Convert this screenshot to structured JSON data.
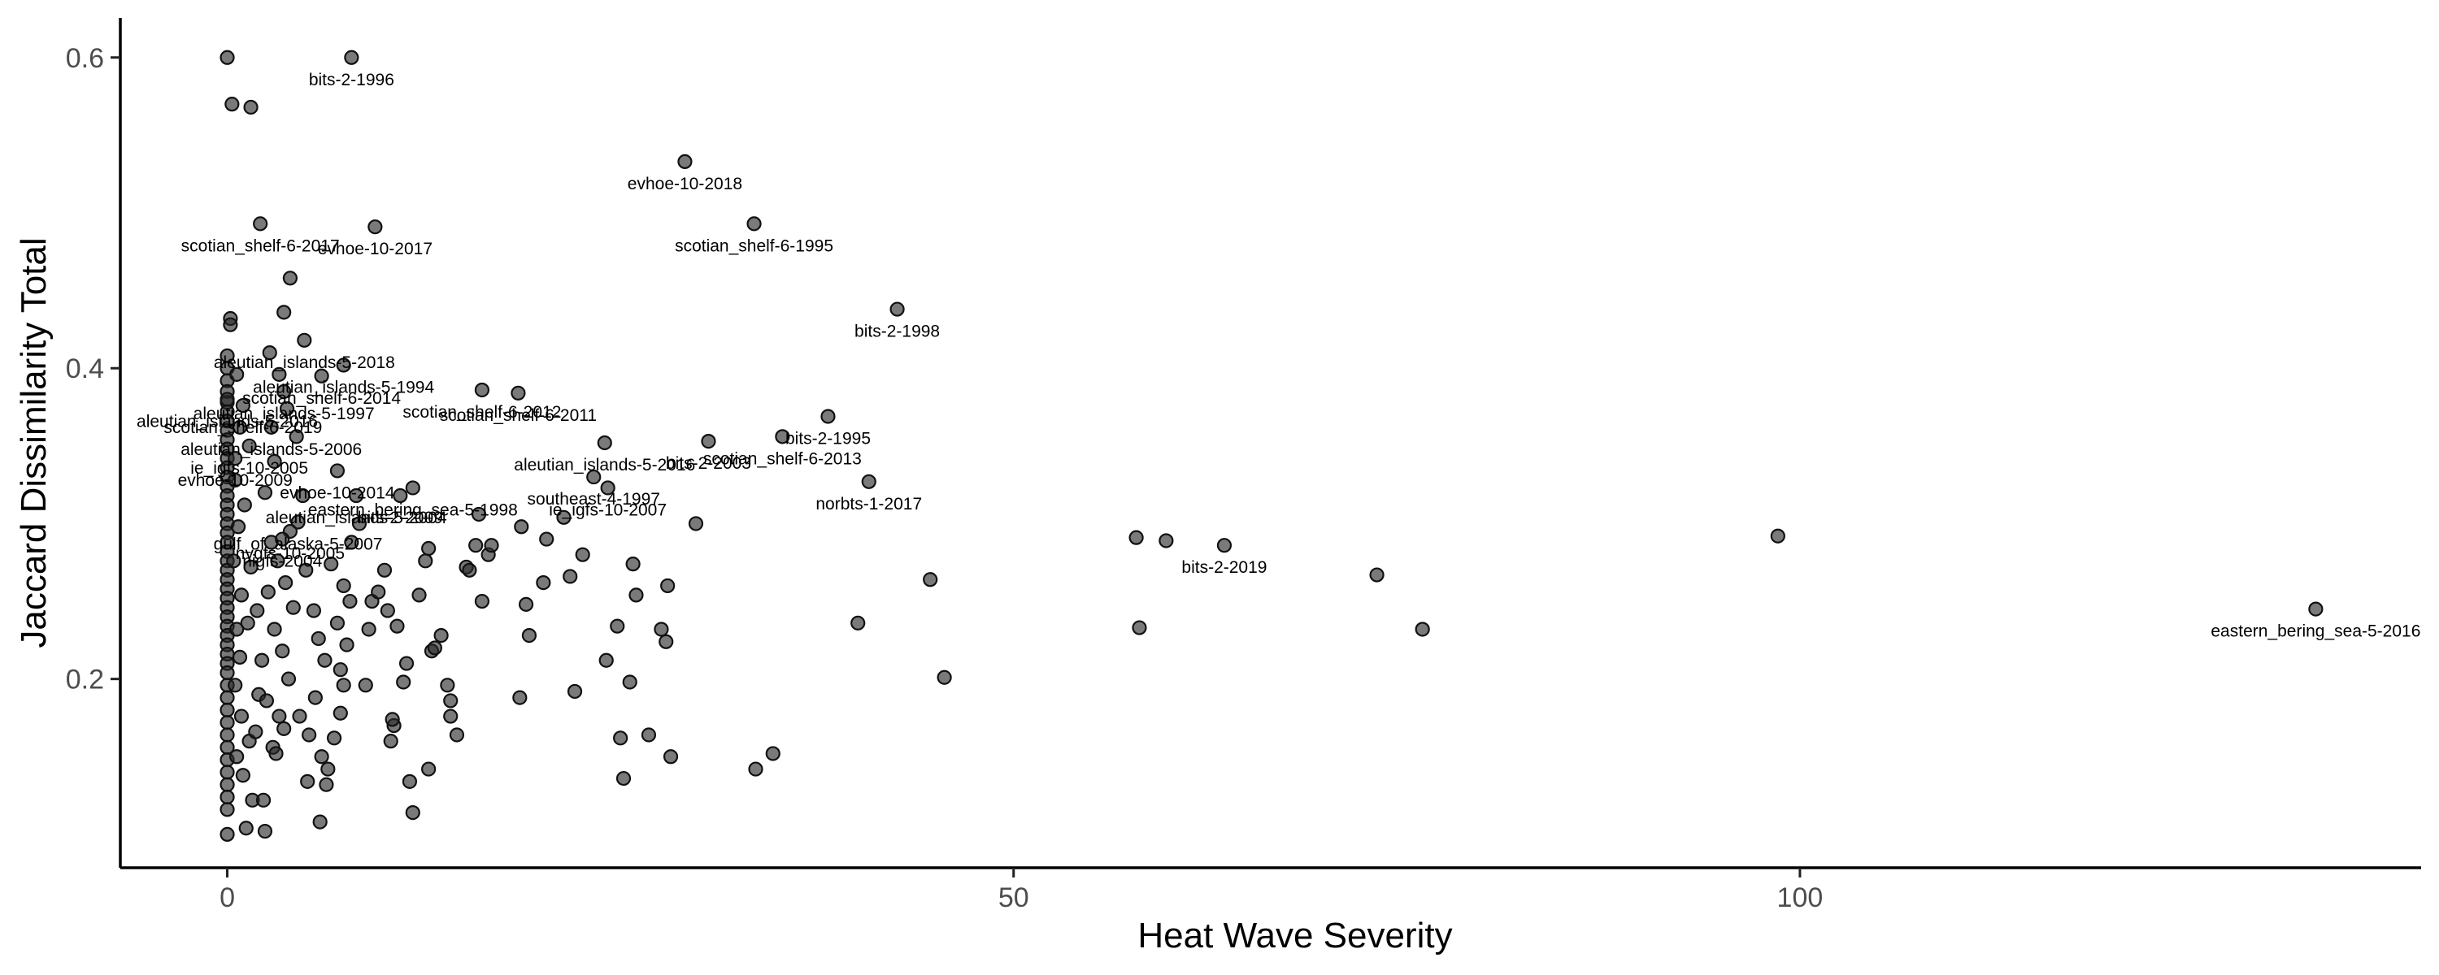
{
  "chart_data": {
    "type": "scatter",
    "title": "",
    "xlabel": "Heat Wave Severity",
    "ylabel": "Jaccard Dissimilarity Total",
    "xlim": [
      -6.8,
      139.5
    ],
    "ylim": [
      0.0785,
      0.6255
    ],
    "x_ticks": [
      0,
      50,
      100
    ],
    "y_ticks": [
      0.2,
      0.4,
      0.6
    ],
    "x_tick_labels": [
      "0",
      "50",
      "100"
    ],
    "y_tick_labels": [
      "0.2",
      "0.4",
      "0.6"
    ],
    "grid": false,
    "point_color": "#3a3a3a",
    "labeled_points": [
      {
        "label": "bits-2-1996",
        "x": 7.9,
        "y": 0.6
      },
      {
        "label": "evhoe-10-2018",
        "x": 29.1,
        "y": 0.533
      },
      {
        "label": "scotian_shelf-6-2017",
        "x": 2.1,
        "y": 0.493
      },
      {
        "label": "evhoe-10-2017",
        "x": 9.4,
        "y": 0.491
      },
      {
        "label": "scotian_shelf-6-1995",
        "x": 33.5,
        "y": 0.493
      },
      {
        "label": "bits-2-1998",
        "x": 42.6,
        "y": 0.438
      },
      {
        "label": "aleutian_islands-5-2018",
        "x": 4.9,
        "y": 0.418
      },
      {
        "label": "aleutian_islands-5-1994",
        "x": 7.4,
        "y": 0.402
      },
      {
        "label": "scotian_shelf-6-2014",
        "x": 6.0,
        "y": 0.395
      },
      {
        "label": "aleutian_islands-5-1997",
        "x": 3.6,
        "y": 0.385
      },
      {
        "label": "aleutian_islands-5-2016",
        "x": 0.0,
        "y": 0.38
      },
      {
        "label": "scotian_shelf-6-2019",
        "x": 1.0,
        "y": 0.376
      },
      {
        "label": "scotian_shelf-6-2012",
        "x": 16.2,
        "y": 0.386
      },
      {
        "label": "scotian_shelf-6-2011",
        "x": 18.5,
        "y": 0.384
      },
      {
        "label": "aleutian_islands-5-2006",
        "x": 2.8,
        "y": 0.362
      },
      {
        "label": "aleutian_islands-5-2016",
        "x": 24.0,
        "y": 0.352
      },
      {
        "label": "scotian_shelf-6-2013",
        "x": 35.3,
        "y": 0.356
      },
      {
        "label": "ie_igfs-10-2005",
        "x": 1.4,
        "y": 0.35
      },
      {
        "label": "evhoe-10-2014",
        "x": 7.0,
        "y": 0.334
      },
      {
        "label": "evhoe-10-2009",
        "x": 0.5,
        "y": 0.342
      },
      {
        "label": "bits-2-1995",
        "x": 38.2,
        "y": 0.369
      },
      {
        "label": "bits-2-2003",
        "x": 30.6,
        "y": 0.353
      },
      {
        "label": "ie_igfs-10-2007",
        "x": 24.2,
        "y": 0.323
      },
      {
        "label": "norbts-1-2017",
        "x": 40.8,
        "y": 0.327
      },
      {
        "label": "aleutian_islands-5-2004",
        "x": 8.2,
        "y": 0.318
      },
      {
        "label": "eastern_bering_sea-5-1998",
        "x": 11.8,
        "y": 0.323
      },
      {
        "label": "bits-2-2009",
        "x": 11.0,
        "y": 0.318
      },
      {
        "label": "southeast-4-1997",
        "x": 23.3,
        "y": 0.33
      },
      {
        "label": "gulf_of_alaska-5-2007",
        "x": 4.5,
        "y": 0.301
      },
      {
        "label": "nygfs-10-2005",
        "x": 4.0,
        "y": 0.295
      },
      {
        "label": "nigfs-2004",
        "x": 3.5,
        "y": 0.29
      },
      {
        "label": "bits-2-2019",
        "x": 63.4,
        "y": 0.286
      },
      {
        "label": "eastern_bering_sea-5-2016",
        "x": 132.8,
        "y": 0.245
      }
    ],
    "points": [
      {
        "x": 0.0,
        "y": 0.6
      },
      {
        "x": 0.2,
        "y": 0.432
      },
      {
        "x": 0.2,
        "y": 0.428
      },
      {
        "x": 0.0,
        "y": 0.408
      },
      {
        "x": 0.0,
        "y": 0.4
      },
      {
        "x": 0.0,
        "y": 0.392
      },
      {
        "x": 0.0,
        "y": 0.385
      },
      {
        "x": 0.0,
        "y": 0.378
      },
      {
        "x": 0.0,
        "y": 0.372
      },
      {
        "x": 0.0,
        "y": 0.366
      },
      {
        "x": 0.0,
        "y": 0.36
      },
      {
        "x": 0.0,
        "y": 0.354
      },
      {
        "x": 0.0,
        "y": 0.348
      },
      {
        "x": 0.0,
        "y": 0.342
      },
      {
        "x": 0.0,
        "y": 0.336
      },
      {
        "x": 0.0,
        "y": 0.33
      },
      {
        "x": 0.0,
        "y": 0.324
      },
      {
        "x": 0.0,
        "y": 0.318
      },
      {
        "x": 0.0,
        "y": 0.312
      },
      {
        "x": 0.0,
        "y": 0.306
      },
      {
        "x": 0.0,
        "y": 0.3
      },
      {
        "x": 0.0,
        "y": 0.294
      },
      {
        "x": 0.0,
        "y": 0.288
      },
      {
        "x": 0.0,
        "y": 0.282
      },
      {
        "x": 0.0,
        "y": 0.276
      },
      {
        "x": 0.0,
        "y": 0.27
      },
      {
        "x": 0.0,
        "y": 0.264
      },
      {
        "x": 0.0,
        "y": 0.258
      },
      {
        "x": 0.0,
        "y": 0.252
      },
      {
        "x": 0.0,
        "y": 0.246
      },
      {
        "x": 0.0,
        "y": 0.24
      },
      {
        "x": 0.0,
        "y": 0.234
      },
      {
        "x": 0.0,
        "y": 0.228
      },
      {
        "x": 0.0,
        "y": 0.222
      },
      {
        "x": 0.0,
        "y": 0.216
      },
      {
        "x": 0.0,
        "y": 0.21
      },
      {
        "x": 0.0,
        "y": 0.204
      },
      {
        "x": 0.0,
        "y": 0.196
      },
      {
        "x": 0.0,
        "y": 0.188
      },
      {
        "x": 0.0,
        "y": 0.18
      },
      {
        "x": 0.0,
        "y": 0.172
      },
      {
        "x": 0.0,
        "y": 0.164
      },
      {
        "x": 0.0,
        "y": 0.156
      },
      {
        "x": 0.0,
        "y": 0.148
      },
      {
        "x": 0.0,
        "y": 0.14
      },
      {
        "x": 0.0,
        "y": 0.132
      },
      {
        "x": 0.0,
        "y": 0.124
      },
      {
        "x": 0.0,
        "y": 0.116
      },
      {
        "x": 0.0,
        "y": 0.1
      },
      {
        "x": 0.3,
        "y": 0.57
      },
      {
        "x": 1.5,
        "y": 0.568
      },
      {
        "x": 0.6,
        "y": 0.396
      },
      {
        "x": 0.8,
        "y": 0.362
      },
      {
        "x": 0.5,
        "y": 0.328
      },
      {
        "x": 0.7,
        "y": 0.298
      },
      {
        "x": 0.4,
        "y": 0.276
      },
      {
        "x": 0.9,
        "y": 0.254
      },
      {
        "x": 0.6,
        "y": 0.232
      },
      {
        "x": 0.8,
        "y": 0.214
      },
      {
        "x": 0.5,
        "y": 0.196
      },
      {
        "x": 0.9,
        "y": 0.176
      },
      {
        "x": 0.6,
        "y": 0.15
      },
      {
        "x": 1.0,
        "y": 0.138
      },
      {
        "x": 1.2,
        "y": 0.104
      },
      {
        "x": 1.6,
        "y": 0.122
      },
      {
        "x": 2.3,
        "y": 0.122
      },
      {
        "x": 2.4,
        "y": 0.102
      },
      {
        "x": 1.4,
        "y": 0.16
      },
      {
        "x": 1.8,
        "y": 0.166
      },
      {
        "x": 2.0,
        "y": 0.19
      },
      {
        "x": 2.5,
        "y": 0.186
      },
      {
        "x": 2.2,
        "y": 0.212
      },
      {
        "x": 1.3,
        "y": 0.236
      },
      {
        "x": 1.9,
        "y": 0.244
      },
      {
        "x": 2.6,
        "y": 0.256
      },
      {
        "x": 1.5,
        "y": 0.272
      },
      {
        "x": 2.8,
        "y": 0.288
      },
      {
        "x": 1.1,
        "y": 0.312
      },
      {
        "x": 2.4,
        "y": 0.32
      },
      {
        "x": 3.0,
        "y": 0.34
      },
      {
        "x": 2.7,
        "y": 0.41
      },
      {
        "x": 3.6,
        "y": 0.436
      },
      {
        "x": 4.0,
        "y": 0.458
      },
      {
        "x": 3.3,
        "y": 0.396
      },
      {
        "x": 3.8,
        "y": 0.374
      },
      {
        "x": 4.4,
        "y": 0.356
      },
      {
        "x": 4.8,
        "y": 0.318
      },
      {
        "x": 3.2,
        "y": 0.276
      },
      {
        "x": 3.7,
        "y": 0.262
      },
      {
        "x": 4.2,
        "y": 0.246
      },
      {
        "x": 3.0,
        "y": 0.232
      },
      {
        "x": 3.5,
        "y": 0.218
      },
      {
        "x": 3.9,
        "y": 0.2
      },
      {
        "x": 3.3,
        "y": 0.176
      },
      {
        "x": 3.6,
        "y": 0.168
      },
      {
        "x": 2.9,
        "y": 0.156
      },
      {
        "x": 3.1,
        "y": 0.152
      },
      {
        "x": 5.0,
        "y": 0.27
      },
      {
        "x": 5.5,
        "y": 0.244
      },
      {
        "x": 5.8,
        "y": 0.226
      },
      {
        "x": 6.2,
        "y": 0.212
      },
      {
        "x": 5.6,
        "y": 0.188
      },
      {
        "x": 4.6,
        "y": 0.176
      },
      {
        "x": 5.2,
        "y": 0.164
      },
      {
        "x": 6.0,
        "y": 0.15
      },
      {
        "x": 5.1,
        "y": 0.134
      },
      {
        "x": 6.4,
        "y": 0.142
      },
      {
        "x": 6.3,
        "y": 0.132
      },
      {
        "x": 5.9,
        "y": 0.108
      },
      {
        "x": 6.8,
        "y": 0.162
      },
      {
        "x": 7.2,
        "y": 0.178
      },
      {
        "x": 7.4,
        "y": 0.196
      },
      {
        "x": 7.2,
        "y": 0.206
      },
      {
        "x": 7.6,
        "y": 0.222
      },
      {
        "x": 7.0,
        "y": 0.236
      },
      {
        "x": 7.8,
        "y": 0.25
      },
      {
        "x": 7.4,
        "y": 0.26
      },
      {
        "x": 6.6,
        "y": 0.274
      },
      {
        "x": 7.9,
        "y": 0.288
      },
      {
        "x": 8.4,
        "y": 0.3
      },
      {
        "x": 8.8,
        "y": 0.196
      },
      {
        "x": 9.0,
        "y": 0.232
      },
      {
        "x": 9.2,
        "y": 0.25
      },
      {
        "x": 9.6,
        "y": 0.256
      },
      {
        "x": 10.0,
        "y": 0.27
      },
      {
        "x": 10.2,
        "y": 0.244
      },
      {
        "x": 10.4,
        "y": 0.16
      },
      {
        "x": 10.6,
        "y": 0.17
      },
      {
        "x": 10.5,
        "y": 0.174
      },
      {
        "x": 10.8,
        "y": 0.234
      },
      {
        "x": 11.2,
        "y": 0.198
      },
      {
        "x": 11.4,
        "y": 0.21
      },
      {
        "x": 11.6,
        "y": 0.134
      },
      {
        "x": 11.8,
        "y": 0.114
      },
      {
        "x": 12.2,
        "y": 0.254
      },
      {
        "x": 12.6,
        "y": 0.276
      },
      {
        "x": 12.8,
        "y": 0.284
      },
      {
        "x": 12.8,
        "y": 0.142
      },
      {
        "x": 13.0,
        "y": 0.218
      },
      {
        "x": 13.2,
        "y": 0.22
      },
      {
        "x": 13.6,
        "y": 0.228
      },
      {
        "x": 14.0,
        "y": 0.196
      },
      {
        "x": 14.2,
        "y": 0.186
      },
      {
        "x": 14.2,
        "y": 0.176
      },
      {
        "x": 14.6,
        "y": 0.164
      },
      {
        "x": 15.2,
        "y": 0.272
      },
      {
        "x": 15.4,
        "y": 0.27
      },
      {
        "x": 15.8,
        "y": 0.286
      },
      {
        "x": 16.0,
        "y": 0.306
      },
      {
        "x": 16.2,
        "y": 0.25
      },
      {
        "x": 16.6,
        "y": 0.28
      },
      {
        "x": 16.8,
        "y": 0.286
      },
      {
        "x": 18.7,
        "y": 0.298
      },
      {
        "x": 18.6,
        "y": 0.188
      },
      {
        "x": 19.0,
        "y": 0.248
      },
      {
        "x": 19.2,
        "y": 0.228
      },
      {
        "x": 20.1,
        "y": 0.262
      },
      {
        "x": 20.3,
        "y": 0.29
      },
      {
        "x": 21.4,
        "y": 0.304
      },
      {
        "x": 21.8,
        "y": 0.266
      },
      {
        "x": 22.1,
        "y": 0.192
      },
      {
        "x": 22.6,
        "y": 0.28
      },
      {
        "x": 24.1,
        "y": 0.212
      },
      {
        "x": 24.8,
        "y": 0.234
      },
      {
        "x": 25.0,
        "y": 0.162
      },
      {
        "x": 25.2,
        "y": 0.136
      },
      {
        "x": 25.6,
        "y": 0.198
      },
      {
        "x": 25.8,
        "y": 0.274
      },
      {
        "x": 26.0,
        "y": 0.254
      },
      {
        "x": 26.8,
        "y": 0.164
      },
      {
        "x": 27.6,
        "y": 0.232
      },
      {
        "x": 27.9,
        "y": 0.224
      },
      {
        "x": 28.0,
        "y": 0.26
      },
      {
        "x": 28.2,
        "y": 0.15
      },
      {
        "x": 29.8,
        "y": 0.3
      },
      {
        "x": 33.6,
        "y": 0.142
      },
      {
        "x": 34.7,
        "y": 0.152
      },
      {
        "x": 40.1,
        "y": 0.236
      },
      {
        "x": 44.7,
        "y": 0.264
      },
      {
        "x": 45.6,
        "y": 0.201
      },
      {
        "x": 57.8,
        "y": 0.291
      },
      {
        "x": 58.0,
        "y": 0.233
      },
      {
        "x": 59.7,
        "y": 0.289
      },
      {
        "x": 73.1,
        "y": 0.267
      },
      {
        "x": 76.0,
        "y": 0.232
      },
      {
        "x": 98.6,
        "y": 0.292
      }
    ]
  }
}
